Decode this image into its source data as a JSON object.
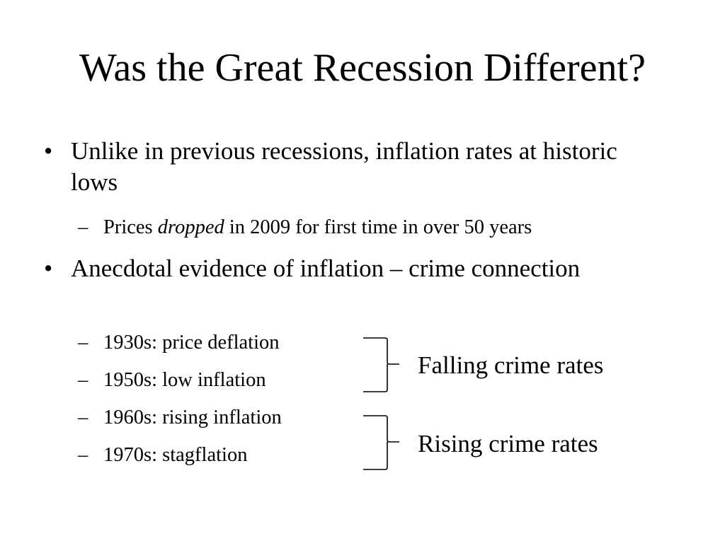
{
  "slide": {
    "title": "Was the Great Recession Different?",
    "bullets": [
      {
        "marker": "•",
        "text": "Unlike in previous recessions, inflation rates at historic lows",
        "subs": [
          {
            "dash": "–",
            "pre": "Prices ",
            "em": "dropped",
            "post": " in 2009 for first time in over 50 years"
          }
        ]
      },
      {
        "marker": "•",
        "text": "Anecdotal evidence of inflation – crime connection",
        "subs": [
          {
            "dash": "–",
            "text": "1930s: price deflation"
          },
          {
            "dash": "–",
            "text": "1950s: low inflation"
          },
          {
            "dash": "–",
            "text": "1960s: rising inflation"
          },
          {
            "dash": "–",
            "text": "1970s: stagflation"
          }
        ]
      }
    ],
    "groups": [
      {
        "label": "Falling crime rates"
      },
      {
        "label": "Rising crime rates"
      }
    ]
  }
}
